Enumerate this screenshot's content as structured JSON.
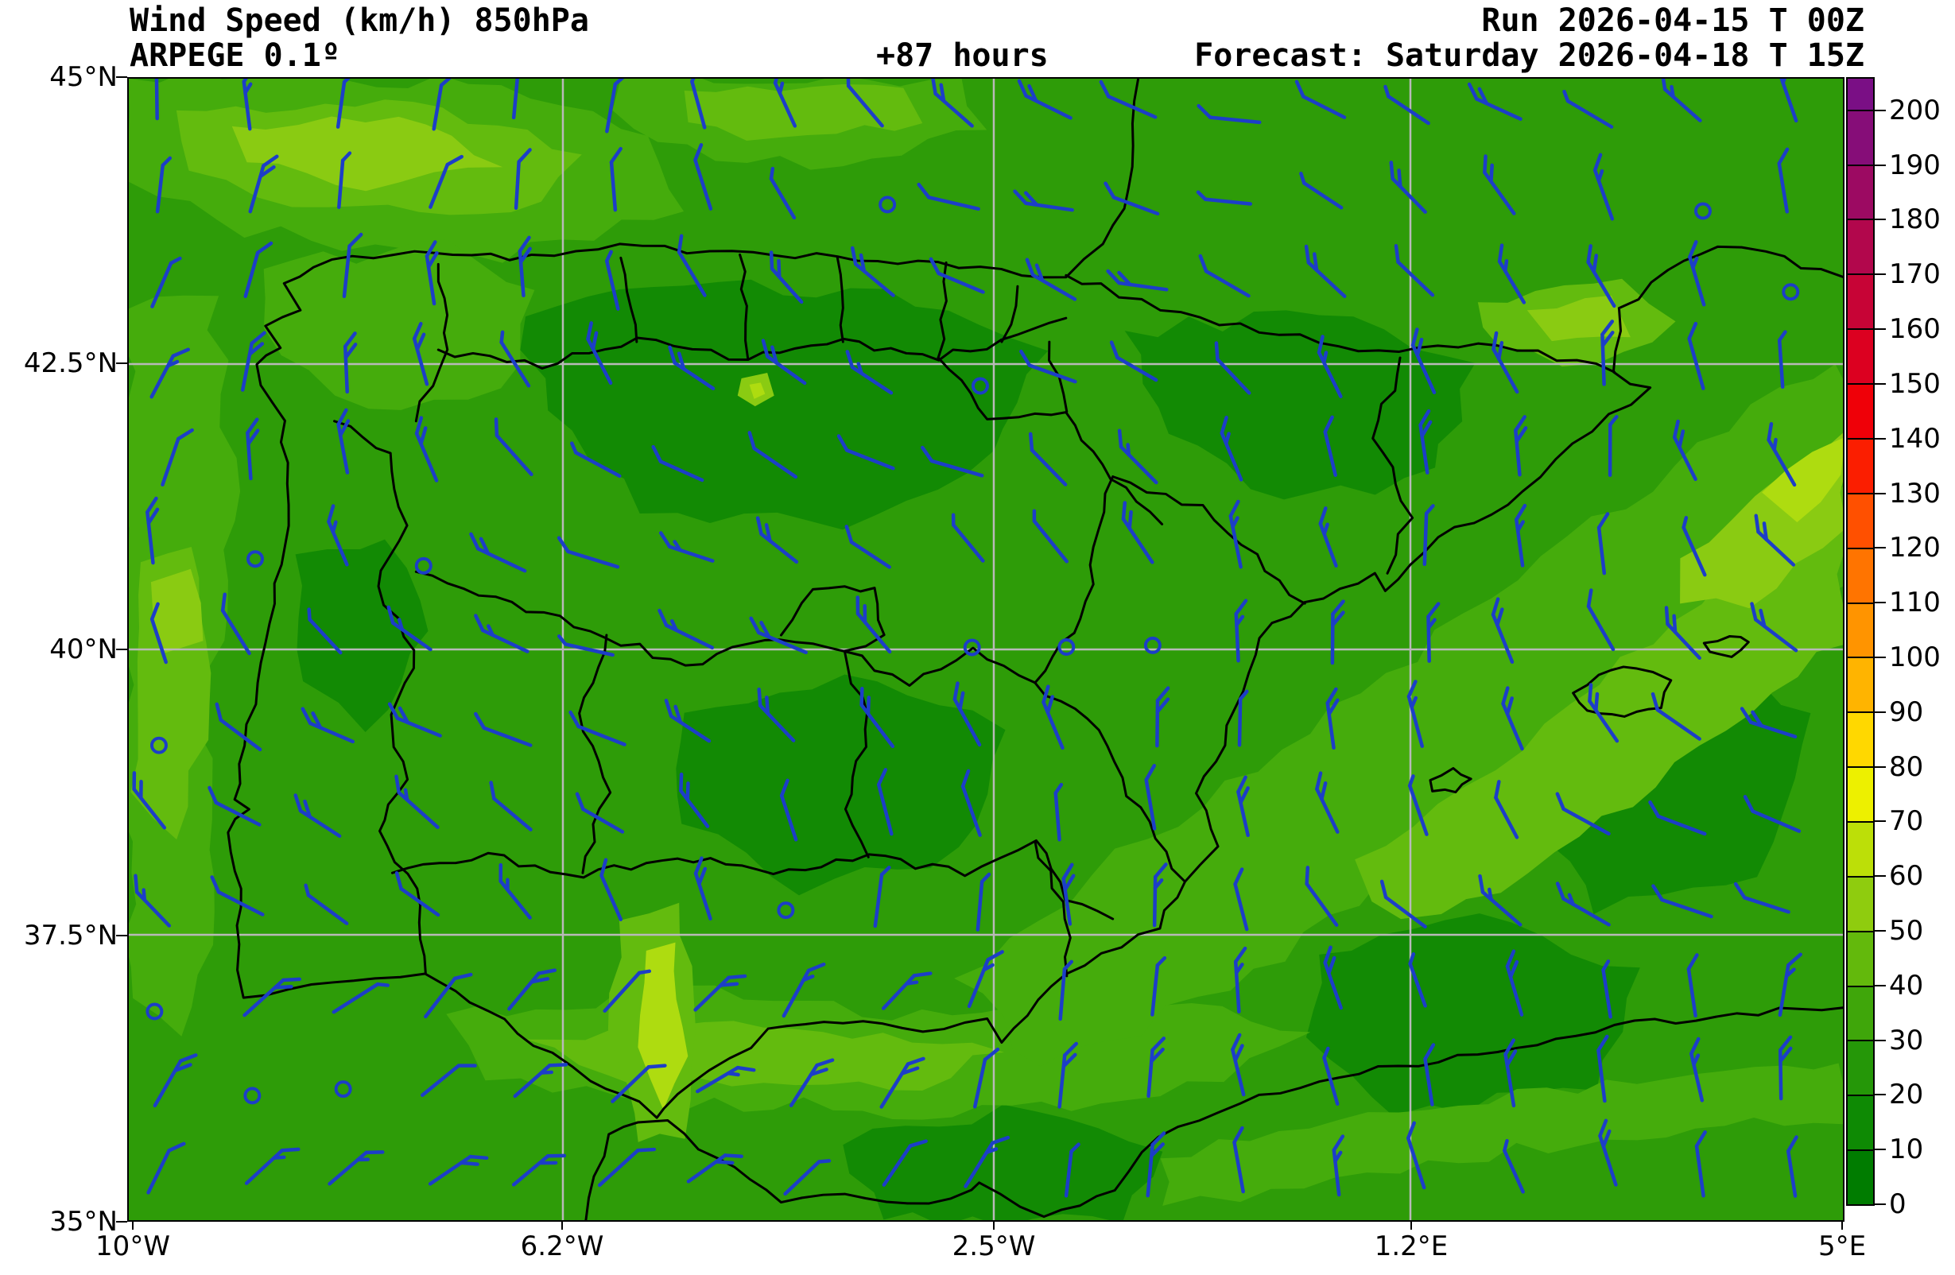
{
  "header": {
    "title": "Wind Speed (km/h) 850hPa",
    "model": "ARPEGE 0.1º",
    "lead": "+87 hours",
    "run": "Run 2026-04-15 T 00Z",
    "forecast": "Forecast: Saturday 2026-04-18 T 15Z"
  },
  "axes": {
    "lat_labels": [
      "45°N",
      "42.5°N",
      "40°N",
      "37.5°N",
      "35°N"
    ],
    "lon_labels": [
      "10°W",
      "6.2°W",
      "2.5°W",
      "1.2°E",
      "5°E"
    ]
  },
  "colorbar": {
    "tick_labels_top_to_bottom": [
      "200",
      "190",
      "180",
      "170",
      "160",
      "150",
      "140",
      "130",
      "120",
      "110",
      "100",
      "90",
      "80",
      "70",
      "60",
      "50",
      "40",
      "30",
      "20",
      "10",
      "0"
    ],
    "colors_bottom_to_top": [
      "#007c00",
      "#0e8a04",
      "#259708",
      "#3fa60a",
      "#63b90c",
      "#8fcc0e",
      "#bcdf08",
      "#edf000",
      "#ffd800",
      "#ffb400",
      "#ff9400",
      "#ff7400",
      "#ff5000",
      "#fb1e00",
      "#ef0008",
      "#dc0020",
      "#c70436",
      "#b2074c",
      "#9c0a62",
      "#860d78",
      "#7a0f85"
    ]
  },
  "map": {
    "base_color": "#2e9c08",
    "shade_palette": [
      "#007b00",
      "#128a04",
      "#2e9c08",
      "#45ac0c",
      "#63bb0e",
      "#8acb12",
      "#aedc10",
      "#d8ec08"
    ],
    "gridline_color": "#b9b9b9",
    "boundary_color": "#000000",
    "barb_color": "#1c3ec8"
  }
}
